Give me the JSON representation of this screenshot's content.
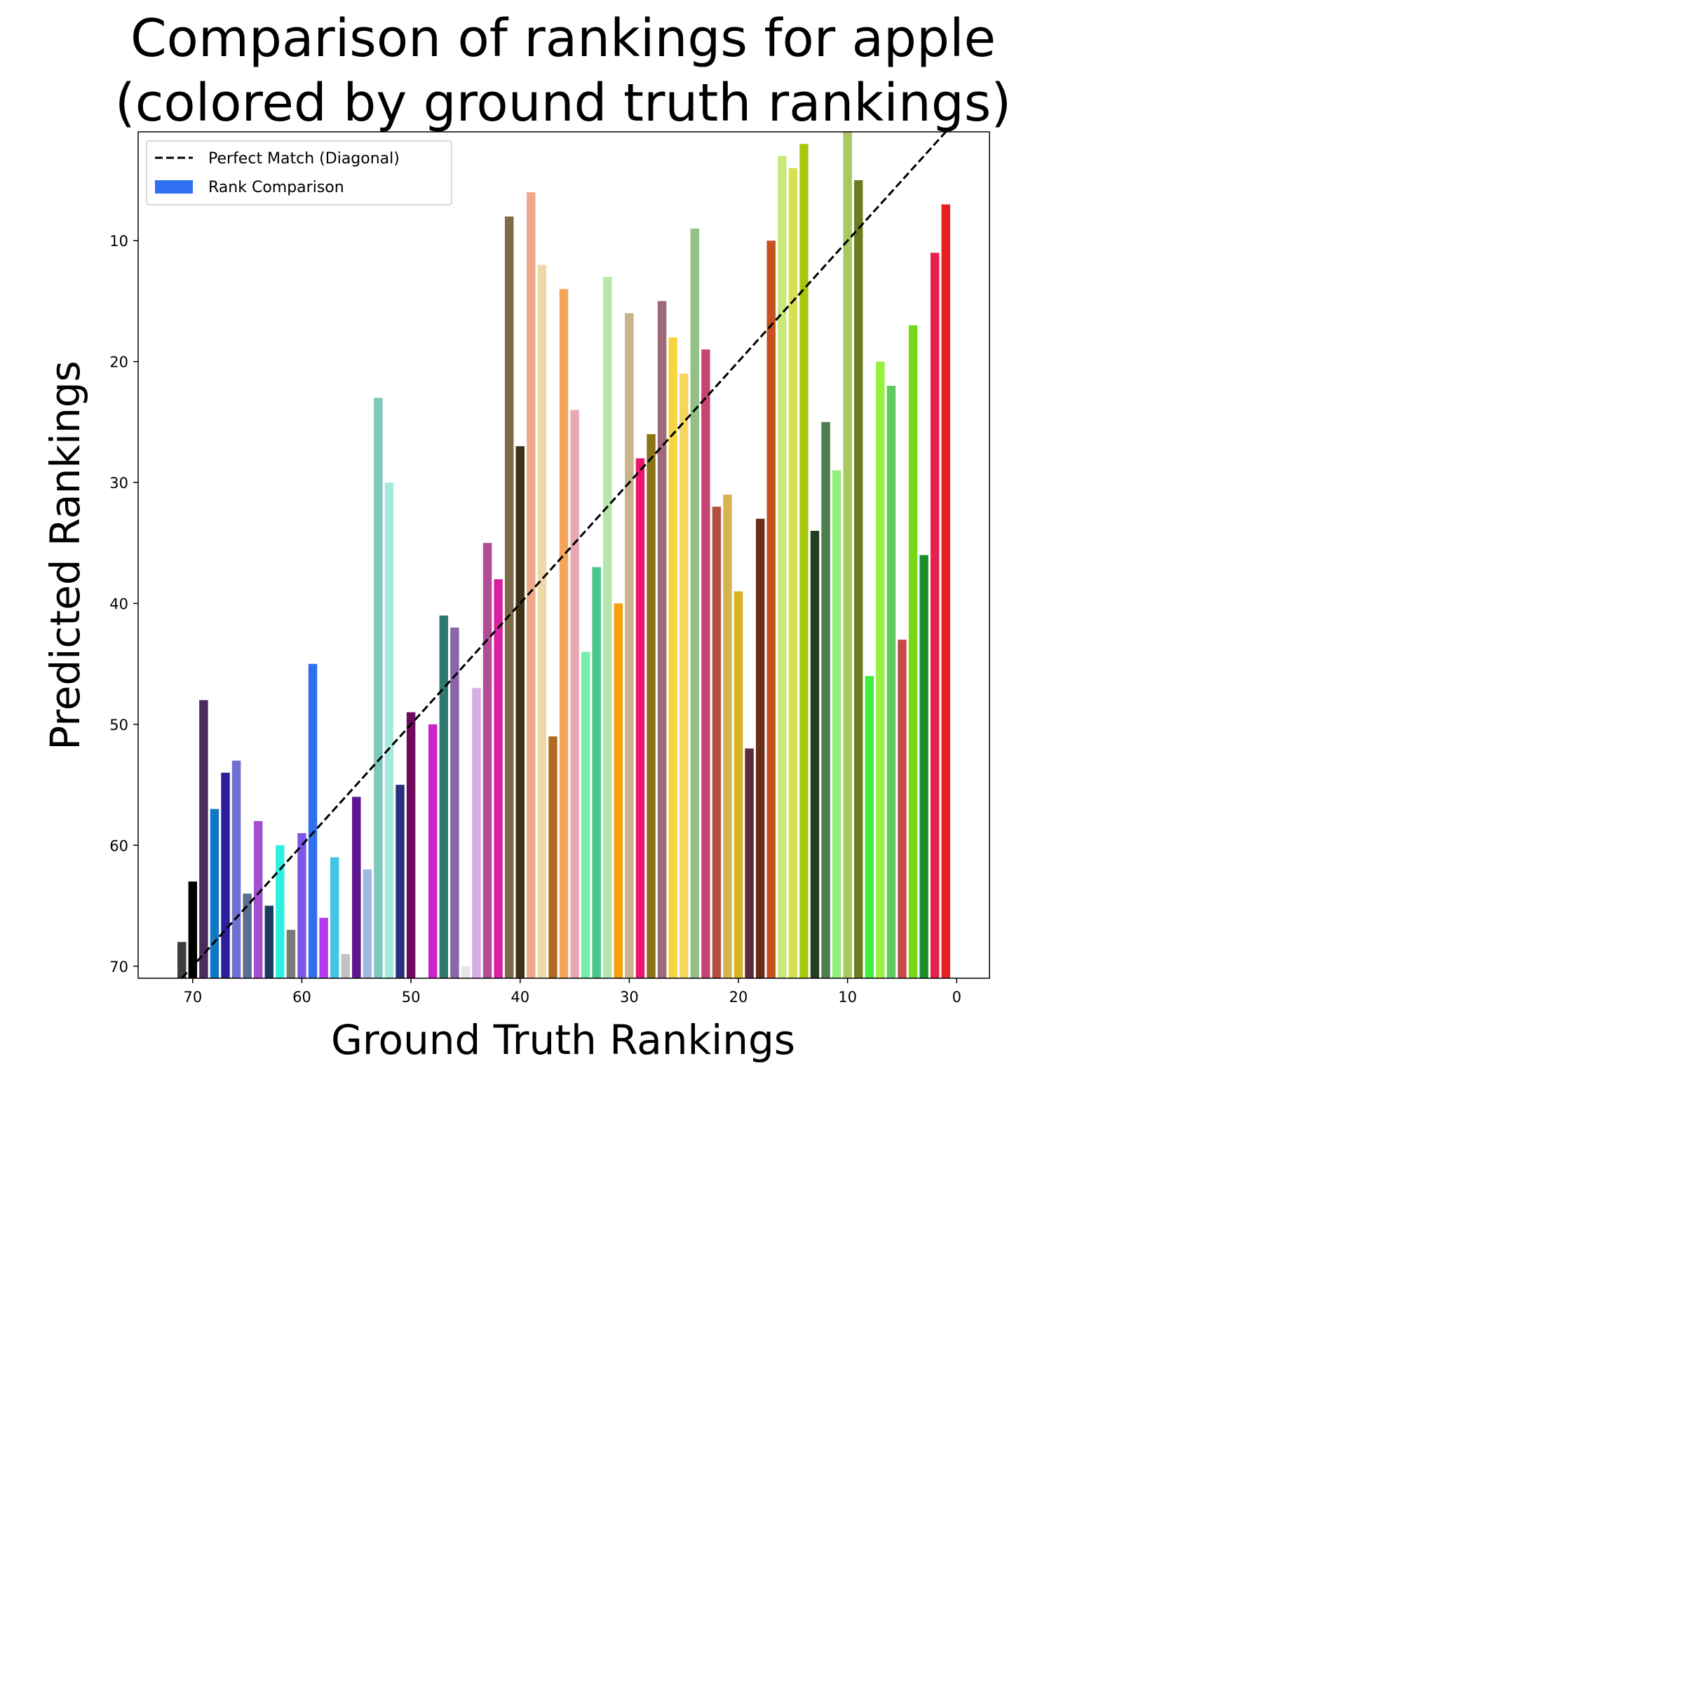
{
  "chart_data": {
    "type": "bar",
    "title_lines": [
      "Comparison of rankings for apple",
      "(colored by ground truth rankings)"
    ],
    "xlabel": "Ground Truth Rankings",
    "ylabel": "Predicted Rankings",
    "xlim": [
      75,
      -3
    ],
    "ylim": [
      71,
      1
    ],
    "x_ticks": [
      70,
      60,
      50,
      40,
      30,
      20,
      10,
      0
    ],
    "y_ticks": [
      10,
      20,
      30,
      40,
      50,
      60,
      70
    ],
    "grid": false,
    "legend": {
      "placement": "top-left",
      "entries": [
        "Perfect Match (Diagonal)",
        "Rank Comparison"
      ]
    },
    "diagonal": {
      "name": "Perfect Match (Diagonal)",
      "style": "dashed",
      "color": "#000000"
    },
    "series": [
      {
        "name": "Rank Comparison",
        "points": [
          {
            "x": 71,
            "y": 68,
            "color": "#3d3d3d"
          },
          {
            "x": 70,
            "y": 63,
            "color": "#000000"
          },
          {
            "x": 69,
            "y": 48,
            "color": "#4b2a5e"
          },
          {
            "x": 68,
            "y": 57,
            "color": "#1177c7"
          },
          {
            "x": 67,
            "y": 54,
            "color": "#2b1f9e"
          },
          {
            "x": 66,
            "y": 53,
            "color": "#7070d0"
          },
          {
            "x": 65,
            "y": 64,
            "color": "#5a6f8f"
          },
          {
            "x": 64,
            "y": 58,
            "color": "#a24fd0"
          },
          {
            "x": 63,
            "y": 65,
            "color": "#1f3a5f"
          },
          {
            "x": 62,
            "y": 60,
            "color": "#2ef0e0"
          },
          {
            "x": 61,
            "y": 67,
            "color": "#7a7a7a"
          },
          {
            "x": 60,
            "y": 59,
            "color": "#7f57e8"
          },
          {
            "x": 59,
            "y": 45,
            "color": "#2f6ff0"
          },
          {
            "x": 58,
            "y": 66,
            "color": "#b43af0"
          },
          {
            "x": 57,
            "y": 61,
            "color": "#45c4e8"
          },
          {
            "x": 56,
            "y": 69,
            "color": "#c2c2c2"
          },
          {
            "x": 55,
            "y": 56,
            "color": "#5e1590"
          },
          {
            "x": 54,
            "y": 62,
            "color": "#9fb9e0"
          },
          {
            "x": 53,
            "y": 23,
            "color": "#7ec7bb"
          },
          {
            "x": 52,
            "y": 30,
            "color": "#a6eadf"
          },
          {
            "x": 51,
            "y": 55,
            "color": "#2a2f7a"
          },
          {
            "x": 50,
            "y": 49,
            "color": "#6e0a5e"
          },
          {
            "x": 48,
            "y": 50,
            "color": "#cc22cc"
          },
          {
            "x": 47,
            "y": 41,
            "color": "#2e7a70"
          },
          {
            "x": 46,
            "y": 42,
            "color": "#8a66a8"
          },
          {
            "x": 45,
            "y": 70,
            "color": "#e6e6e6"
          },
          {
            "x": 44,
            "y": 47,
            "color": "#d6ade6"
          },
          {
            "x": 43,
            "y": 35,
            "color": "#b24c96"
          },
          {
            "x": 42,
            "y": 38,
            "color": "#d821a0"
          },
          {
            "x": 41,
            "y": 8,
            "color": "#7d6b47"
          },
          {
            "x": 40,
            "y": 27,
            "color": "#3d3417"
          },
          {
            "x": 39,
            "y": 6,
            "color": "#f0a888"
          },
          {
            "x": 38,
            "y": 12,
            "color": "#efd8a8"
          },
          {
            "x": 37,
            "y": 51,
            "color": "#b06a20"
          },
          {
            "x": 36,
            "y": 14,
            "color": "#f5a55a"
          },
          {
            "x": 35,
            "y": 24,
            "color": "#e8a8b4"
          },
          {
            "x": 34,
            "y": 44,
            "color": "#74f0a8"
          },
          {
            "x": 33,
            "y": 37,
            "color": "#48c88a"
          },
          {
            "x": 32,
            "y": 13,
            "color": "#b4e8a8"
          },
          {
            "x": 31,
            "y": 40,
            "color": "#f5a010"
          },
          {
            "x": 30,
            "y": 16,
            "color": "#c8b488"
          },
          {
            "x": 29,
            "y": 28,
            "color": "#e8186e"
          },
          {
            "x": 28,
            "y": 26,
            "color": "#8a7418"
          },
          {
            "x": 27,
            "y": 15,
            "color": "#9e6878"
          },
          {
            "x": 26,
            "y": 18,
            "color": "#f8d440"
          },
          {
            "x": 25,
            "y": 21,
            "color": "#f6d460"
          },
          {
            "x": 24,
            "y": 9,
            "color": "#94c088"
          },
          {
            "x": 23,
            "y": 19,
            "color": "#c84470"
          },
          {
            "x": 22,
            "y": 32,
            "color": "#b45040"
          },
          {
            "x": 21,
            "y": 31,
            "color": "#d8b450"
          },
          {
            "x": 20,
            "y": 39,
            "color": "#d8b420"
          },
          {
            "x": 19,
            "y": 52,
            "color": "#5e2a3e"
          },
          {
            "x": 18,
            "y": 33,
            "color": "#6a2e14"
          },
          {
            "x": 17,
            "y": 10,
            "color": "#c85020"
          },
          {
            "x": 16,
            "y": 3,
            "color": "#c8e878"
          },
          {
            "x": 15,
            "y": 4,
            "color": "#d8e050"
          },
          {
            "x": 14,
            "y": 2,
            "color": "#a8c810"
          },
          {
            "x": 13,
            "y": 34,
            "color": "#223e20"
          },
          {
            "x": 12,
            "y": 25,
            "color": "#4e7e4e"
          },
          {
            "x": 11,
            "y": 29,
            "color": "#90f078"
          },
          {
            "x": 10,
            "y": 1,
            "color": "#a8c860"
          },
          {
            "x": 9,
            "y": 5,
            "color": "#6a7e20"
          },
          {
            "x": 8,
            "y": 46,
            "color": "#40f040"
          },
          {
            "x": 7,
            "y": 20,
            "color": "#98f040"
          },
          {
            "x": 6,
            "y": 22,
            "color": "#60c860"
          },
          {
            "x": 5,
            "y": 43,
            "color": "#c84848"
          },
          {
            "x": 4,
            "y": 17,
            "color": "#78d818"
          },
          {
            "x": 3,
            "y": 36,
            "color": "#188e28"
          },
          {
            "x": 2,
            "y": 11,
            "color": "#e8204e"
          },
          {
            "x": 1,
            "y": 7,
            "color": "#e82020"
          }
        ]
      }
    ],
    "legend_patch_color": "#2f6ff0"
  }
}
